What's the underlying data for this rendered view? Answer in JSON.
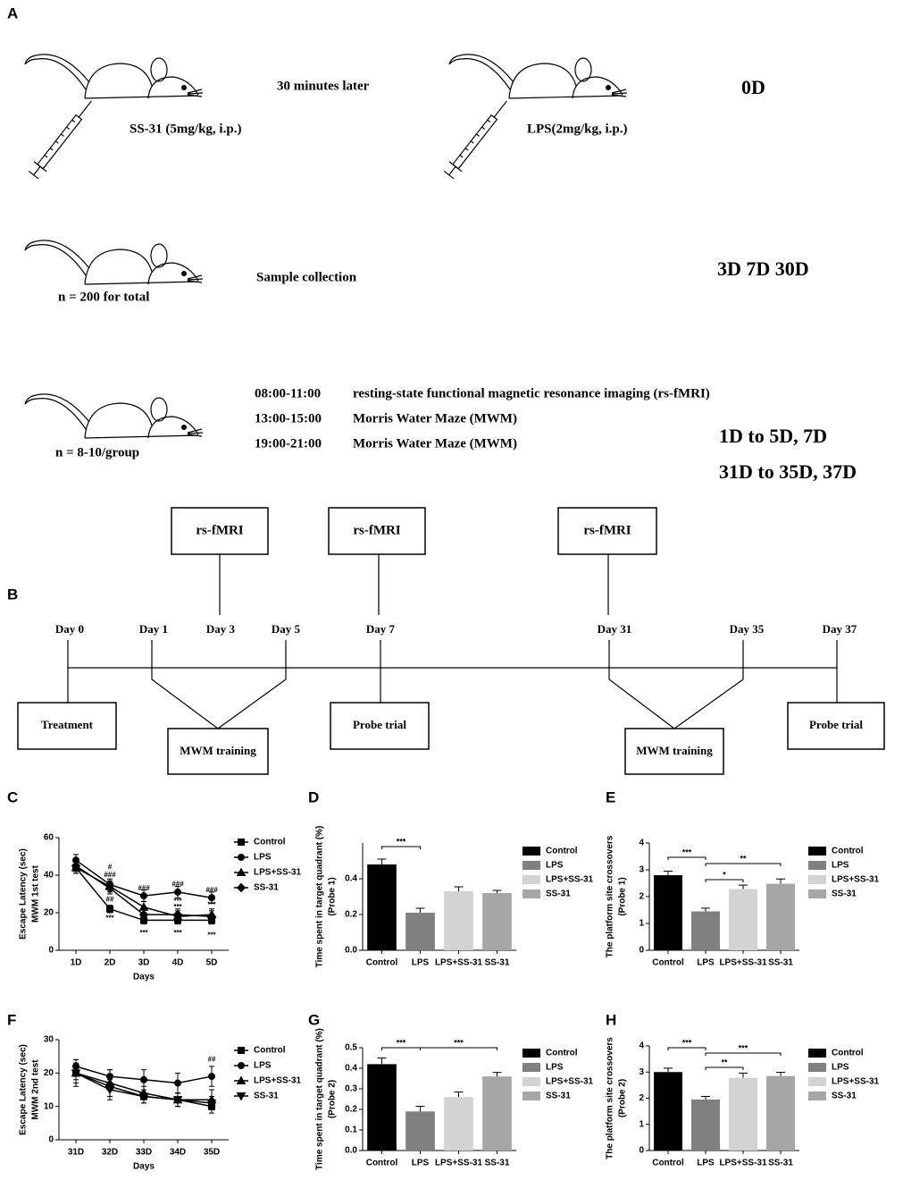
{
  "protocol": {
    "label": "A",
    "step1": {
      "drug": "SS-31 (5mg/kg, i.p.)",
      "interval": "30 minutes later",
      "drug2": "LPS(2mg/kg, i.p.)",
      "day": "0D"
    },
    "sampling": {
      "n": "n = 200 for total",
      "task": "Sample collection",
      "days": "3D 7D 30D"
    },
    "testing": {
      "n": "n = 8-10/group",
      "schedule": [
        {
          "time": "08:00-11:00",
          "task": "resting-state functional magnetic resonance imaging (rs-fMRI)"
        },
        {
          "time": "13:00-15:00",
          "task": "Morris Water Maze (MWM)"
        },
        {
          "time": "19:00-21:00",
          "task": "Morris Water Maze (MWM)"
        }
      ],
      "days": [
        "1D to 5D, 7D",
        "31D to 35D, 37D"
      ]
    }
  },
  "timeline": {
    "label": "B",
    "scans": [
      "rs-fMRI",
      "rs-fMRI",
      "rs-fMRI"
    ],
    "days": [
      "Day 0",
      "Day 1",
      "Day 3",
      "Day 5",
      "Day 7",
      "Day 31",
      "Day 35",
      "Day 37"
    ],
    "phases": [
      "Treatment",
      "MWM training",
      "Probe trial",
      "MWM training",
      "Probe trial"
    ]
  },
  "chart_data": [
    {
      "type": "line",
      "label": "C",
      "ylabel": [
        "Escape Latency (sec)",
        "MWM 1st test"
      ],
      "xlabel": "Days",
      "categories": [
        "1D",
        "2D",
        "3D",
        "4D",
        "5D"
      ],
      "series": [
        {
          "name": "Control",
          "color": "#000000",
          "marker": "square",
          "values": [
            44,
            22,
            16,
            16,
            16
          ],
          "errors": [
            3,
            2,
            2,
            2,
            2
          ]
        },
        {
          "name": "LPS",
          "color": "#000000",
          "marker": "circle",
          "values": [
            48,
            35,
            29,
            31,
            28
          ],
          "errors": [
            3,
            3,
            3,
            3,
            3
          ]
        },
        {
          "name": "LPS+SS-31",
          "color": "#000000",
          "marker": "triangle",
          "values": [
            44,
            34,
            23,
            18,
            19
          ],
          "errors": [
            3,
            3,
            3,
            3,
            3
          ]
        },
        {
          "name": "SS-31",
          "color": "#000000",
          "marker": "diamond",
          "values": [
            45,
            33,
            19,
            19,
            18
          ],
          "errors": [
            3,
            3,
            3,
            3,
            3
          ]
        }
      ],
      "ylim": [
        0,
        60
      ],
      "yticks": [
        0,
        20,
        40,
        60
      ],
      "annotations": [
        "#",
        "###",
        "##",
        "***",
        "###",
        "***",
        "###",
        "***",
        "***",
        "***",
        "###",
        "***",
        "***"
      ]
    },
    {
      "type": "bar",
      "label": "D",
      "ylabel": [
        "Time spent in target quadrant (%)",
        "(Probe 1)"
      ],
      "categories": [
        "Control",
        "LPS",
        "LPS+SS-31",
        "SS-31"
      ],
      "values": [
        0.48,
        0.21,
        0.33,
        0.32
      ],
      "errors": [
        0.03,
        0.025,
        0.025,
        0.015
      ],
      "colors": [
        "#000000",
        "#808080",
        "#d3d3d3",
        "#a6a6a6"
      ],
      "ylim": [
        0,
        0.6
      ],
      "yticks": [
        {
          "value": 0,
          "label": "0.0"
        },
        0.2,
        0.4
      ],
      "annotations": [
        "***"
      ]
    },
    {
      "type": "bar",
      "label": "E",
      "ylabel": [
        "The platform site crossovers",
        "(Probe 1)"
      ],
      "categories": [
        "Control",
        "LPS",
        "LPS+SS-31",
        "SS-31"
      ],
      "values": [
        2.8,
        1.45,
        2.28,
        2.48
      ],
      "errors": [
        0.15,
        0.12,
        0.15,
        0.18
      ],
      "colors": [
        "#000000",
        "#808080",
        "#d3d3d3",
        "#a6a6a6"
      ],
      "ylim": [
        0,
        4
      ],
      "yticks": [
        0,
        1,
        2,
        3,
        4
      ],
      "annotations": [
        "***",
        "**",
        "*"
      ]
    },
    {
      "type": "line",
      "label": "F",
      "ylabel": [
        "Escape Latency (sec)",
        "MWM 2nd test"
      ],
      "xlabel": "Days",
      "categories": [
        "31D",
        "32D",
        "33D",
        "34D",
        "35D"
      ],
      "series": [
        {
          "name": "Control",
          "color": "#000000",
          "marker": "square",
          "values": [
            20,
            16,
            13,
            12,
            10
          ],
          "errors": [
            2,
            3,
            2,
            2,
            2
          ]
        },
        {
          "name": "LPS",
          "color": "#000000",
          "marker": "circle",
          "values": [
            22,
            19,
            18,
            17,
            19
          ],
          "errors": [
            2,
            2,
            3,
            3,
            3
          ]
        },
        {
          "name": "LPS+SS-31",
          "color": "#000000",
          "marker": "triangle",
          "values": [
            20,
            17,
            14,
            12,
            12
          ],
          "errors": [
            4,
            4,
            2,
            2,
            3
          ]
        },
        {
          "name": "SS-31",
          "color": "#000000",
          "marker": "triangle-down",
          "values": [
            20,
            15,
            13,
            12,
            11
          ],
          "errors": [
            3,
            3,
            2,
            2,
            2
          ]
        }
      ],
      "ylim": [
        0,
        30
      ],
      "yticks": [
        0,
        10,
        20,
        30
      ],
      "annotations": [
        "##"
      ]
    },
    {
      "type": "bar",
      "label": "G",
      "ylabel": [
        "Time spent in target quadrant (%)",
        "(Probe 2)"
      ],
      "categories": [
        "Control",
        "LPS",
        "LPS+SS-31",
        "SS-31"
      ],
      "values": [
        0.42,
        0.19,
        0.26,
        0.36
      ],
      "errors": [
        0.03,
        0.025,
        0.025,
        0.02
      ],
      "colors": [
        "#000000",
        "#808080",
        "#d3d3d3",
        "#a6a6a6"
      ],
      "ylim": [
        0,
        0.5
      ],
      "yticks": [
        {
          "value": 0,
          "label": "0.0"
        },
        0.1,
        0.2,
        0.3,
        0.4,
        0.5
      ],
      "annotations": [
        "***",
        "***"
      ]
    },
    {
      "type": "bar",
      "label": "H",
      "ylabel": [
        "The platform site crossovers",
        "(Probe 2)"
      ],
      "categories": [
        "Control",
        "LPS",
        "LPS+SS-31",
        "SS-31"
      ],
      "values": [
        3.0,
        1.95,
        2.78,
        2.85
      ],
      "errors": [
        0.15,
        0.12,
        0.18,
        0.14
      ],
      "colors": [
        "#000000",
        "#808080",
        "#d3d3d3",
        "#a6a6a6"
      ],
      "ylim": [
        0,
        4
      ],
      "yticks": [
        0,
        1,
        2,
        3,
        4
      ],
      "annotations": [
        "***",
        "***",
        "**"
      ]
    }
  ]
}
